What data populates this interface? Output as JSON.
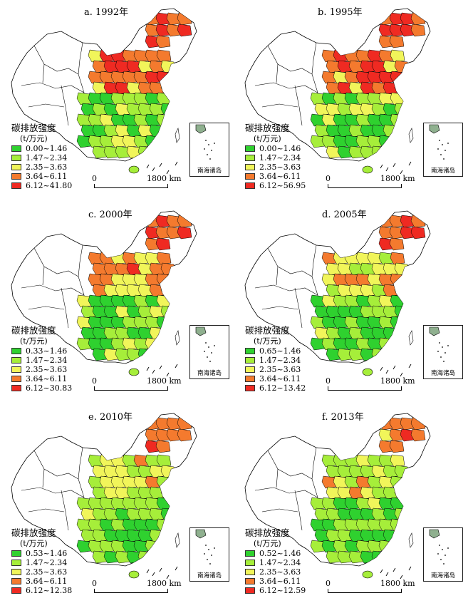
{
  "legend": {
    "title": "碳排放强度",
    "unit": "(t/万元)"
  },
  "inset_label": "南海诸岛",
  "scale": {
    "zero": "0",
    "distance": "1800 km"
  },
  "colors": {
    "class1": "#2fd12f",
    "class2": "#a6ee3a",
    "class3": "#f1f55a",
    "class4": "#f47a2e",
    "class5": "#ef2a22",
    "nodata": "#ffffff",
    "border": "#000000"
  },
  "panels": [
    {
      "id": "a",
      "title": "a. 1992年",
      "classes": [
        "0.00~1.46",
        "1.47~2.34",
        "2.35~3.63",
        "3.64~6.11",
        "6.12~41.80"
      ]
    },
    {
      "id": "b",
      "title": "b. 1995年",
      "classes": [
        "0.00~1.46",
        "1.47~2.34",
        "2.35~3.63",
        "3.64~6.11",
        "6.12~56.95"
      ]
    },
    {
      "id": "c",
      "title": "c. 2000年",
      "classes": [
        "0.33~1.46",
        "1.47~2.34",
        "2.35~3.63",
        "3.64~6.11",
        "6.12~30.83"
      ]
    },
    {
      "id": "d",
      "title": "d. 2005年",
      "classes": [
        "0.65~1.46",
        "1.47~2.34",
        "2.35~3.63",
        "3.64~6.11",
        "6.12~13.42"
      ]
    },
    {
      "id": "e",
      "title": "e. 2010年",
      "classes": [
        "0.53~1.46",
        "1.47~2.34",
        "2.35~3.63",
        "3.64~6.11",
        "6.12~12.38"
      ]
    },
    {
      "id": "f",
      "title": "f. 2013年",
      "classes": [
        "0.52~1.46",
        "1.47~2.34",
        "2.35~3.63",
        "3.64~6.11",
        "6.12~12.59"
      ]
    }
  ]
}
